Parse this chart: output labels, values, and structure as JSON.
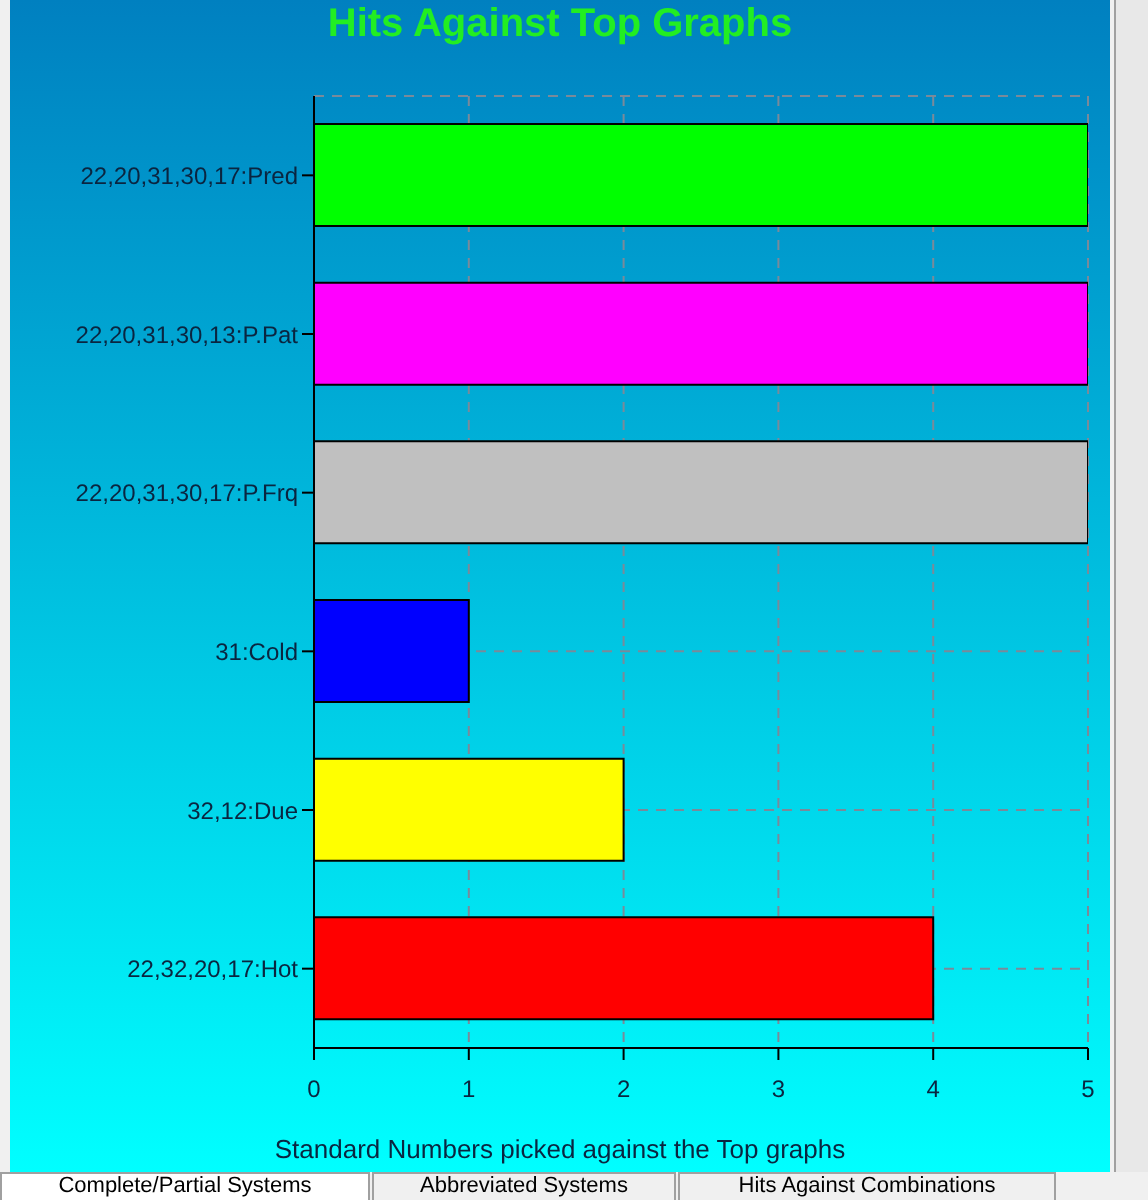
{
  "chart_data": {
    "type": "bar",
    "orientation": "horizontal",
    "title": "Hits Against Top Graphs",
    "xlabel": "Standard Numbers picked against the Top graphs",
    "categories": [
      "22,20,31,30,17:Pred",
      "22,20,31,30,13:P.Pat",
      "22,20,31,30,17:P.Frq",
      "31:Cold",
      "32,12:Due",
      "22,32,20,17:Hot"
    ],
    "values": [
      5,
      5,
      5,
      1,
      2,
      4
    ],
    "colors": [
      "#00ff00",
      "#ff00ff",
      "#c0c0c0",
      "#0000ff",
      "#ffff00",
      "#ff0000"
    ],
    "xlim": [
      0,
      5
    ],
    "xticks": [
      0,
      1,
      2,
      3,
      4,
      5
    ],
    "grid": true,
    "annotations": [
      "Complete/Partial Systems",
      "Abbreviated Systems",
      "Hits Against Combinations"
    ]
  }
}
